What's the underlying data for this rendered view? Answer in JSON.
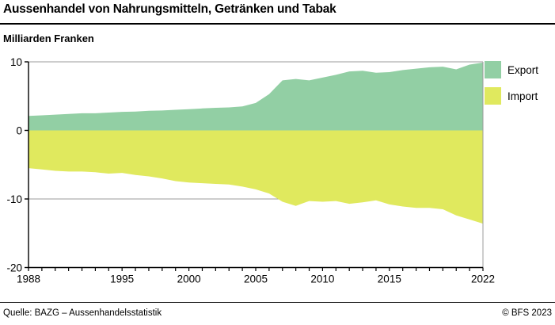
{
  "title": "Aussenhandel von Nahrungsmitteln, Getränken und Tabak",
  "subtitle": "Milliarden Franken",
  "footer": {
    "source": "Quelle: BAZG – Aussenhandelsstatistik",
    "copyright": "© BFS 2023"
  },
  "colors": {
    "export": "#92cfa4",
    "import": "#e0e95e",
    "frame": "#9b9b9b",
    "axis": "#000000",
    "text": "#000000"
  },
  "chart_data": {
    "type": "area",
    "title": "Aussenhandel von Nahrungsmitteln, Getränken und Tabak",
    "ylabel": "Milliarden Franken",
    "xlabel": "",
    "x": [
      1988,
      1989,
      1990,
      1991,
      1992,
      1993,
      1994,
      1995,
      1996,
      1997,
      1998,
      1999,
      2000,
      2001,
      2002,
      2003,
      2004,
      2005,
      2006,
      2007,
      2008,
      2009,
      2010,
      2011,
      2012,
      2013,
      2014,
      2015,
      2016,
      2017,
      2018,
      2019,
      2020,
      2021,
      2022
    ],
    "series": [
      {
        "name": "Export",
        "color": "#92cfa4",
        "values": [
          2.1,
          2.2,
          2.3,
          2.4,
          2.5,
          2.5,
          2.6,
          2.7,
          2.75,
          2.85,
          2.9,
          3.0,
          3.1,
          3.2,
          3.3,
          3.35,
          3.5,
          4.0,
          5.3,
          7.3,
          7.5,
          7.3,
          7.7,
          8.1,
          8.6,
          8.7,
          8.4,
          8.5,
          8.8,
          9.0,
          9.2,
          9.3,
          8.9,
          9.6,
          9.9
        ]
      },
      {
        "name": "Import",
        "color": "#e0e95e",
        "values": [
          -5.5,
          -5.7,
          -5.9,
          -6.0,
          -6.0,
          -6.1,
          -6.3,
          -6.2,
          -6.5,
          -6.7,
          -7.0,
          -7.4,
          -7.6,
          -7.7,
          -7.8,
          -7.9,
          -8.2,
          -8.6,
          -9.2,
          -10.4,
          -11.0,
          -10.3,
          -10.4,
          -10.3,
          -10.7,
          -10.5,
          -10.2,
          -10.8,
          -11.1,
          -11.3,
          -11.3,
          -11.5,
          -12.4,
          -13.0,
          -13.6
        ]
      }
    ],
    "ylim": [
      -20,
      10
    ],
    "yticks": [
      10,
      0,
      -10,
      -20
    ],
    "xticks": [
      1988,
      1995,
      2000,
      2005,
      2010,
      2015,
      2022
    ],
    "baseline": 0,
    "grid": "horizontal",
    "legend_position": "top-right"
  }
}
